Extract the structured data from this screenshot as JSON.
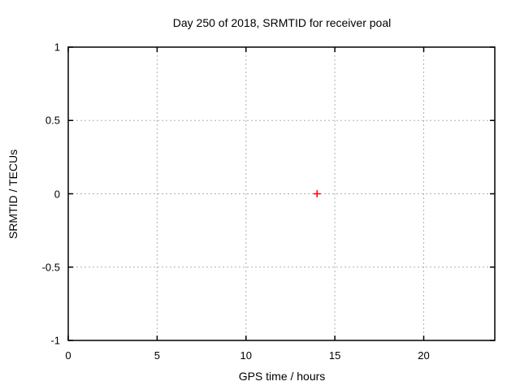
{
  "chart_data": {
    "type": "scatter",
    "title": "Day 250 of 2018, SRMTID for receiver poal",
    "xlabel": "GPS time / hours",
    "ylabel": "SRMTID / TECUs",
    "xlim": [
      0,
      24
    ],
    "ylim": [
      -1,
      1
    ],
    "xticks": [
      0,
      5,
      10,
      15,
      20
    ],
    "yticks": [
      -1,
      -0.5,
      0,
      0.5,
      1
    ],
    "xtick_labels": [
      "0",
      "5",
      "10",
      "15",
      "20"
    ],
    "ytick_labels": [
      "-1",
      "-0.5",
      "0",
      "0.5",
      "1"
    ],
    "grid": true,
    "grid_style": "dotted",
    "legend": false,
    "series": [
      {
        "name": "SRMTID",
        "marker": "plus",
        "color": "#ff0000",
        "points": [
          {
            "x": 14,
            "y": 0
          }
        ]
      }
    ],
    "colors": {
      "background": "#ffffff",
      "border": "#000000",
      "grid": "#b0b0b0",
      "text": "#000000",
      "marker": "#ff0000"
    }
  }
}
